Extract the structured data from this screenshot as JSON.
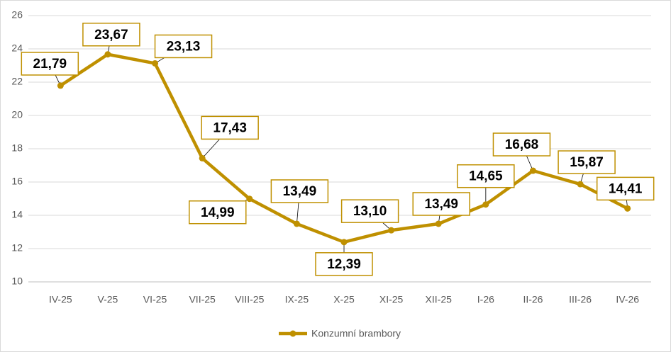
{
  "chart_data": {
    "type": "line",
    "categories": [
      "IV-25",
      "V-25",
      "VI-25",
      "VII-25",
      "VIII-25",
      "IX-25",
      "X-25",
      "XI-25",
      "XII-25",
      "I-26",
      "II-26",
      "III-26",
      "IV-26"
    ],
    "series": [
      {
        "name": "Konzumní brambory",
        "color": "#bf9000",
        "values": [
          21.79,
          23.67,
          23.13,
          17.43,
          14.99,
          13.49,
          12.39,
          13.1,
          13.49,
          14.65,
          16.68,
          15.87,
          14.41
        ],
        "value_labels": [
          "21,79",
          "23,67",
          "23,13",
          "17,43",
          "14,99",
          "13,49",
          "12,39",
          "13,10",
          "13,49",
          "14,65",
          "16,68",
          "15,87",
          "14,41"
        ]
      }
    ],
    "ylim": [
      10,
      26
    ],
    "yticks": [
      10,
      12,
      14,
      16,
      18,
      20,
      22,
      24,
      26
    ],
    "grid": true,
    "legend": "bottom"
  }
}
